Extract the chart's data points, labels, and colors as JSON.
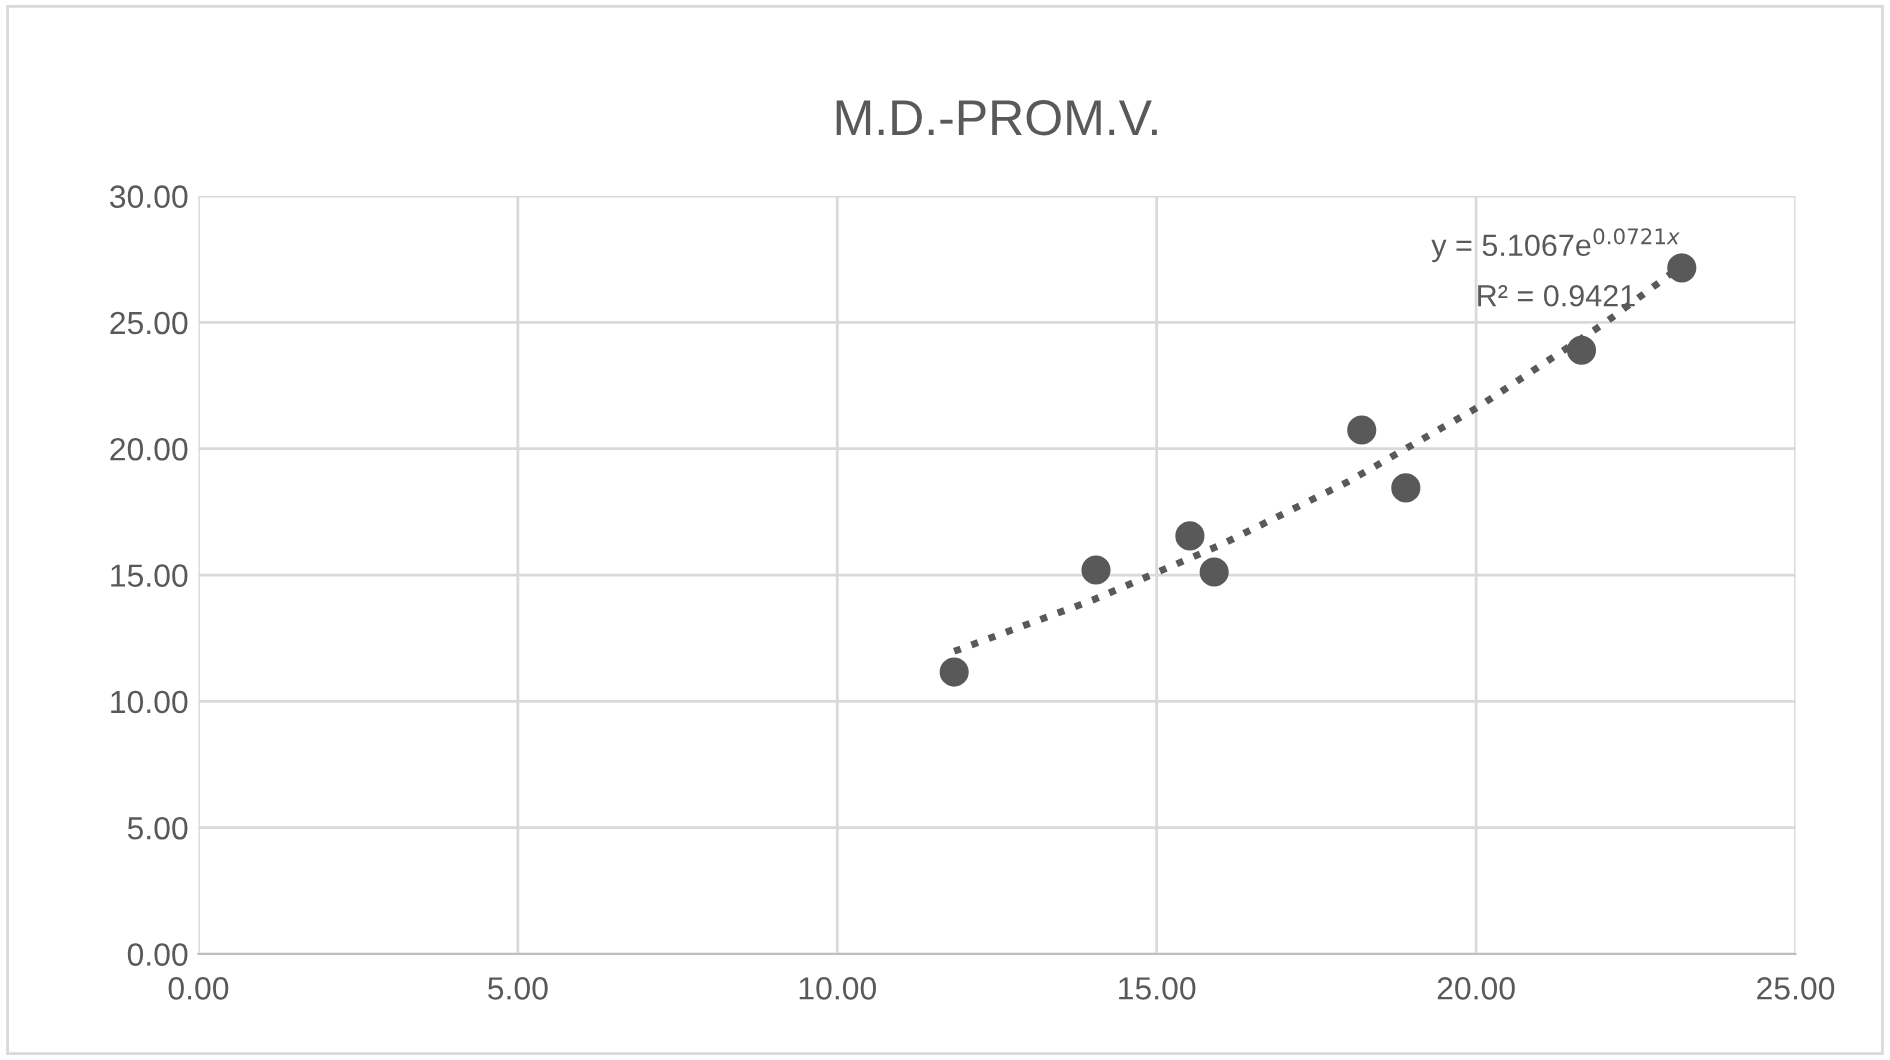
{
  "chart_data": {
    "type": "scatter",
    "title": "M.D.-PROM.V.",
    "series": [
      {
        "color": "#595959",
        "marker": "circle",
        "x": [
          11.83,
          14.05,
          15.52,
          15.9,
          18.21,
          18.9,
          21.65,
          23.22
        ],
        "values": [
          11.16,
          15.2,
          16.55,
          15.12,
          20.74,
          18.45,
          23.9,
          27.16
        ]
      },
      {
        "type": "line",
        "color": "#595959",
        "line_style": "dotted",
        "marker": "none",
        "x": [
          11.83,
          14,
          16,
          18,
          20,
          22,
          23.22
        ],
        "values": [
          11.98,
          14.01,
          16.19,
          18.7,
          21.6,
          24.95,
          27.25
        ]
      }
    ],
    "annotations": [
      "y = 5.1067e$^{0.0721x}$",
      "R² = 0.9421"
    ],
    "xlim": [
      0,
      25
    ],
    "ylim": [
      0,
      30
    ],
    "xticks": [
      {
        "value": 0,
        "label": "0.00"
      },
      {
        "value": 5,
        "label": "5.00"
      },
      {
        "value": 10,
        "label": "10.00"
      },
      {
        "value": 15,
        "label": "15.00"
      },
      {
        "value": 20,
        "label": "20.00"
      },
      {
        "value": 25,
        "label": "25.00"
      }
    ],
    "yticks": [
      {
        "value": 0,
        "label": "0.00"
      },
      {
        "value": 5,
        "label": "5.00"
      },
      {
        "value": 10,
        "label": "10.00"
      },
      {
        "value": 15,
        "label": "15.00"
      },
      {
        "value": 20,
        "label": "20.00"
      },
      {
        "value": 25,
        "label": "25.00"
      },
      {
        "value": 30,
        "label": "30.00"
      }
    ],
    "grid": true,
    "legend": false
  }
}
